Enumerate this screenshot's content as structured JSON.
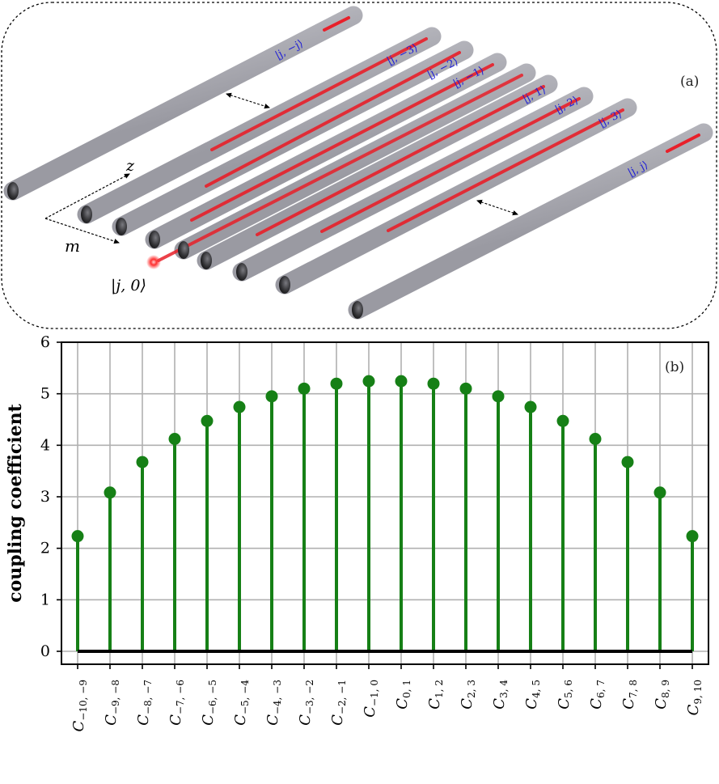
{
  "panel_a": {
    "label": "(a)",
    "axis_z": "z",
    "axis_m": "m",
    "input_state": "|j, 0⟩",
    "states": [
      "|j, −j⟩",
      "|j, −3⟩",
      "|j, −2⟩",
      "|j, −1⟩",
      "|j, 1⟩",
      "|j, 2⟩",
      "|j, 3⟩",
      "|j, j⟩"
    ]
  },
  "chart_data": {
    "type": "stem",
    "panel_label": "(b)",
    "ylabel": "coupling coefficient",
    "xlabel": "",
    "ylim": [
      0,
      6
    ],
    "yticks": [
      "0",
      "1",
      "2",
      "3",
      "4",
      "5",
      "6"
    ],
    "grid": true,
    "color": "#168016",
    "categories": [
      {
        "sym": "C",
        "sub": "−10, −9"
      },
      {
        "sym": "C",
        "sub": "−9, −8"
      },
      {
        "sym": "C",
        "sub": "−8, −7"
      },
      {
        "sym": "C",
        "sub": "−7, −6"
      },
      {
        "sym": "C",
        "sub": "−6, −5"
      },
      {
        "sym": "C",
        "sub": "−5, −4"
      },
      {
        "sym": "C",
        "sub": "−4, −3"
      },
      {
        "sym": "C",
        "sub": "−3, −2"
      },
      {
        "sym": "C",
        "sub": "−2, −1"
      },
      {
        "sym": "C",
        "sub": "−1, 0"
      },
      {
        "sym": "C",
        "sub": "0, 1"
      },
      {
        "sym": "C",
        "sub": "1, 2"
      },
      {
        "sym": "C",
        "sub": "2, 3"
      },
      {
        "sym": "C",
        "sub": "3, 4"
      },
      {
        "sym": "C",
        "sub": "4, 5"
      },
      {
        "sym": "C",
        "sub": "5, 6"
      },
      {
        "sym": "C",
        "sub": "6, 7"
      },
      {
        "sym": "C",
        "sub": "7, 8"
      },
      {
        "sym": "C",
        "sub": "8, 9"
      },
      {
        "sym": "C",
        "sub": "9, 10"
      }
    ],
    "values": [
      2.236,
      3.082,
      3.674,
      4.123,
      4.472,
      4.743,
      4.95,
      5.099,
      5.196,
      5.244,
      5.244,
      5.196,
      5.099,
      4.95,
      4.743,
      4.472,
      4.123,
      3.674,
      3.082,
      2.236
    ]
  }
}
